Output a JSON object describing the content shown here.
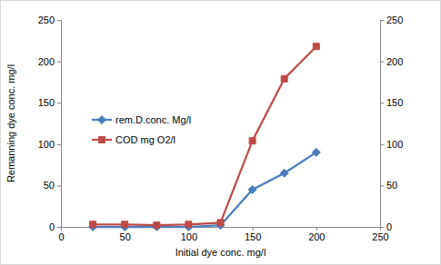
{
  "chart_data": {
    "type": "line",
    "x_label": "Initial dye conc. mg/l",
    "y_label": "Remanning dye conc. mg/l",
    "x": [
      25,
      50,
      75,
      100,
      125,
      150,
      175,
      200
    ],
    "series": [
      {
        "name": "rem.D.conc. Mg/l",
        "color": "#4a7ebb",
        "marker": "diamond",
        "values": [
          0,
          0,
          0,
          0,
          2,
          45,
          65,
          90
        ]
      },
      {
        "name": "COD mg O2/l",
        "color": "#be4b48",
        "marker": "square",
        "values": [
          3,
          3,
          2,
          3,
          5,
          104,
          179,
          218
        ]
      }
    ],
    "xlim": [
      0,
      250
    ],
    "xticks": [
      0,
      50,
      100,
      150,
      200,
      250
    ],
    "ylim": [
      0,
      250
    ],
    "yticks": [
      0,
      50,
      100,
      150,
      200,
      250
    ],
    "y2lim": [
      0,
      250
    ],
    "y2ticks": [
      0,
      50,
      100,
      150,
      200,
      250
    ],
    "grid": false,
    "legend": "upper left"
  }
}
